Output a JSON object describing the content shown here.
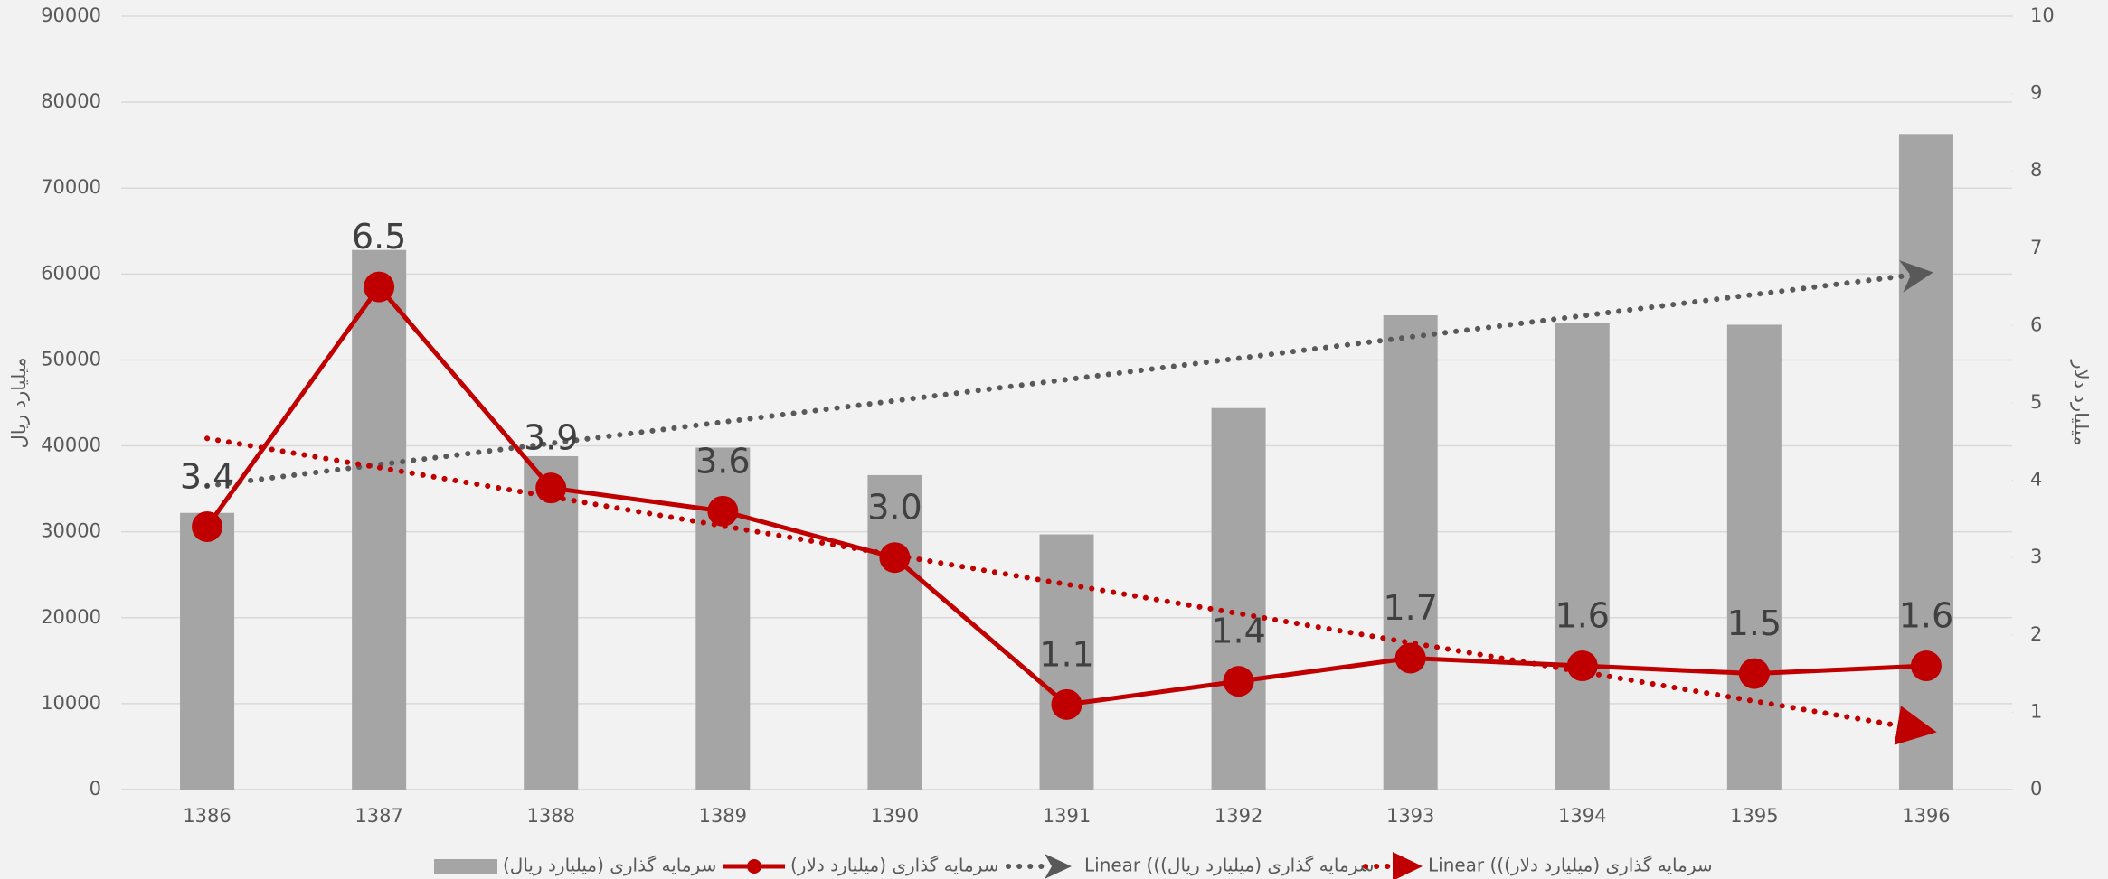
{
  "chart_data": {
    "type": "bar",
    "categories": [
      "1386",
      "1387",
      "1388",
      "1389",
      "1390",
      "1391",
      "1392",
      "1393",
      "1394",
      "1395",
      "1396"
    ],
    "ylabel": "میلیارد ریال",
    "y2label": "میلیارد دلار",
    "ylim": [
      0,
      90000
    ],
    "yticks": [
      0,
      10000,
      20000,
      30000,
      40000,
      50000,
      60000,
      70000,
      80000,
      90000
    ],
    "y2lim": [
      0,
      10
    ],
    "y2ticks": [
      0,
      1,
      2,
      3,
      4,
      5,
      6,
      7,
      8,
      9,
      10
    ],
    "grid": true,
    "legend": "bottom",
    "series": [
      {
        "name": "سرمایه گذاری (میلیارد ریال)",
        "type": "bar",
        "color": "#a5a5a5",
        "values": [
          32200,
          62800,
          38800,
          39800,
          36600,
          29700,
          44400,
          55200,
          54300,
          54100,
          76300
        ],
        "trendline": {
          "name": "Linear ((سرمایه گذاری (میلیارد ریال)",
          "color": "#595959"
        }
      },
      {
        "name": "سرمایه گذاری (میلیارد دلار)",
        "type": "line",
        "axis": "y2",
        "color": "#c00000",
        "values": [
          3.4,
          6.5,
          3.9,
          3.6,
          3.0,
          1.1,
          1.4,
          1.7,
          1.6,
          1.5,
          1.6
        ],
        "value_labels": [
          "3.4",
          "6.5",
          "3.9",
          "3.6",
          "3.0",
          "1.1",
          "1.4",
          "1.7",
          "1.6",
          "1.5",
          "1.6"
        ],
        "trendline": {
          "name": "Linear ((سرمایه گذاری (میلیارد دلار)",
          "color": "#c00000"
        }
      }
    ]
  }
}
